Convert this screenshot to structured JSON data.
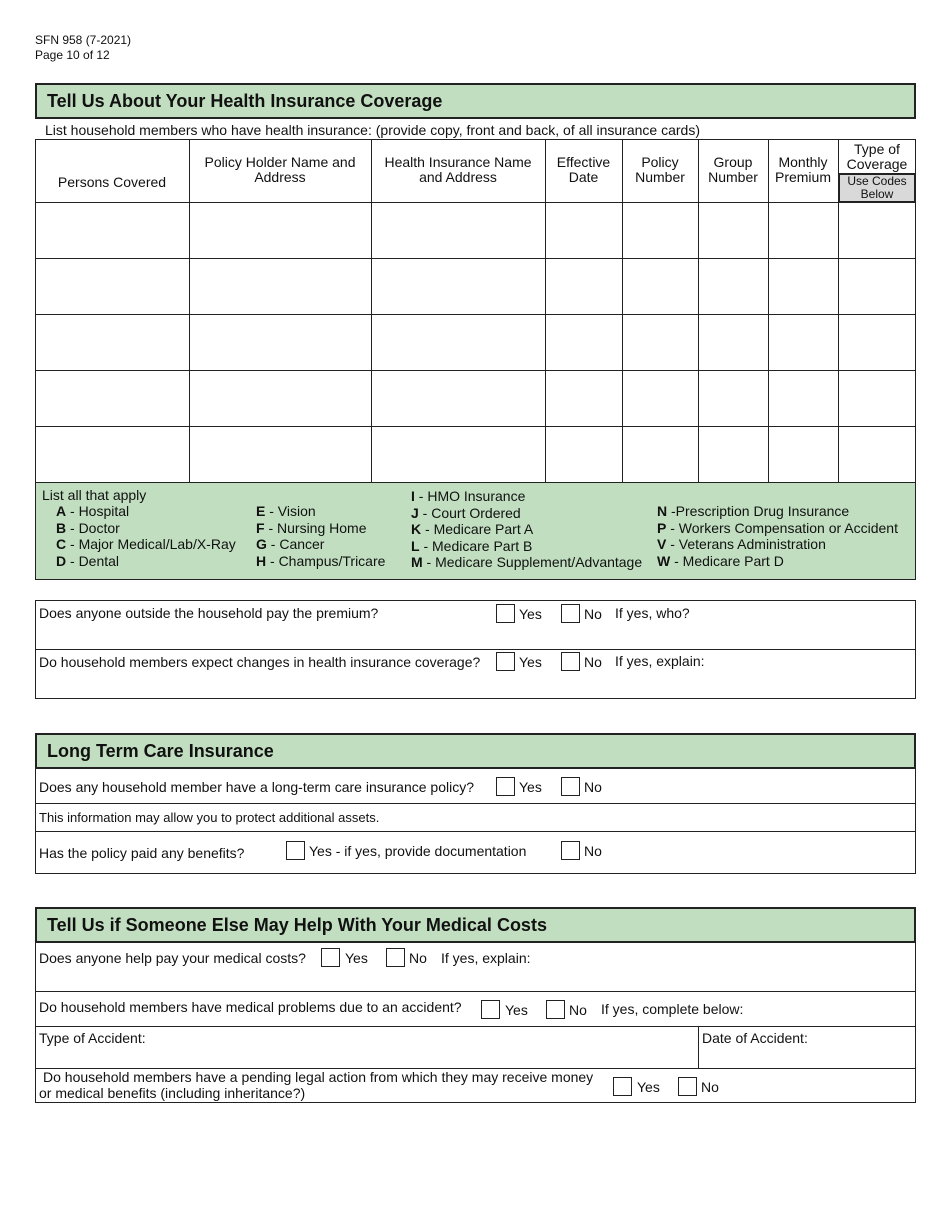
{
  "form_id": "SFN 958 (7-2021)",
  "page": "Page 10 of 12",
  "health": {
    "title": "Tell Us About Your Health Insurance Coverage",
    "intro": "List household members who have health insurance:  (provide copy, front and back, of all insurance cards)",
    "columns": [
      "Persons Covered",
      "Policy Holder Name and Address",
      "Health Insurance Name and Address",
      "Effective Date",
      "Policy Number",
      "Group Number",
      "Monthly Premium",
      "Type of Coverage"
    ],
    "use_codes": "Use Codes Below",
    "rows": [
      [
        "",
        "",
        "",
        "",
        "",
        "",
        "",
        ""
      ],
      [
        "",
        "",
        "",
        "",
        "",
        "",
        "",
        ""
      ],
      [
        "",
        "",
        "",
        "",
        "",
        "",
        "",
        ""
      ],
      [
        "",
        "",
        "",
        "",
        "",
        "",
        "",
        ""
      ],
      [
        "",
        "",
        "",
        "",
        "",
        "",
        "",
        ""
      ]
    ],
    "codes_label": "List all that apply",
    "codes": [
      [
        [
          "A",
          " - Hospital"
        ],
        [
          "B",
          " - Doctor"
        ],
        [
          "C",
          " - Major Medical/Lab/X-Ray"
        ],
        [
          "D",
          " - Dental"
        ]
      ],
      [
        [
          "E",
          " - Vision"
        ],
        [
          "F",
          " - Nursing Home"
        ],
        [
          "G",
          " - Cancer"
        ],
        [
          "H",
          " - Champus/Tricare"
        ]
      ],
      [
        [
          "I",
          " - HMO Insurance"
        ],
        [
          "J",
          " - Court Ordered"
        ],
        [
          "K",
          " - Medicare Part A"
        ],
        [
          "L",
          " - Medicare Part B"
        ],
        [
          "M",
          " - Medicare Supplement/Advantage"
        ]
      ],
      [
        [
          "N",
          " -Prescription  Drug Insurance"
        ],
        [
          "P",
          " - Workers Compensation or Accident"
        ],
        [
          "V",
          " - Veterans Administration"
        ],
        [
          "W",
          " - Medicare Part D"
        ]
      ]
    ]
  },
  "premium": {
    "q1": "Does anyone outside the household pay the premium?",
    "q1_follow": "If yes, who?",
    "q2": "Do household members expect changes in health insurance coverage?",
    "q2_follow": "If yes, explain:",
    "yes": "Yes",
    "no": "No"
  },
  "ltc": {
    "title": "Long Term Care Insurance",
    "q1": "Does any household member have a long-term care insurance policy?",
    "note": "This information may allow you to protect additional assets.",
    "q2": "Has the policy paid any benefits?",
    "q2_yes": "Yes - if yes, provide documentation",
    "yes": "Yes",
    "no": "No"
  },
  "medical": {
    "title": "Tell Us if Someone Else May Help With Your Medical Costs",
    "q1": "Does anyone help pay your medical costs?",
    "q1_follow": "If yes, explain:",
    "q2": "Do household members have medical problems due to an accident?",
    "q2_follow": "If yes, complete below:",
    "type_label": "Type of Accident:",
    "date_label": "Date of Accident:",
    "q3_line1": "Do household members have a pending legal action from which they may receive money",
    "q3_line2": "or medical benefits (including inheritance?)",
    "yes": "Yes",
    "no": "No"
  }
}
